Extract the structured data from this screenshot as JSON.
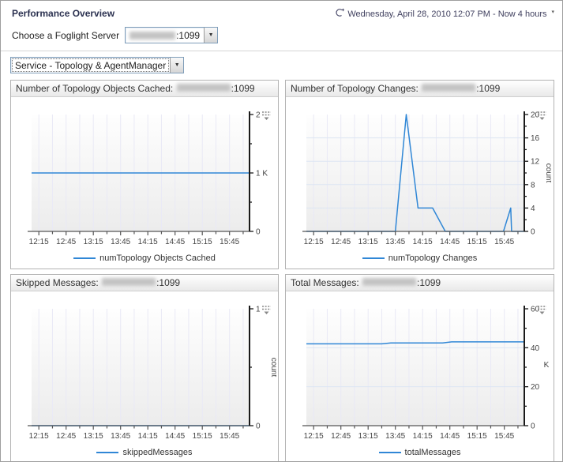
{
  "page": {
    "title": "Performance Overview",
    "time_range_text": "Wednesday, April 28, 2010 12:07 PM - Now 4 hours",
    "server_label": "Choose a Foglight Server",
    "server_value_visible": ":1099",
    "service_selector_value": "Service - Topology & AgentManager",
    "combo_arrow": "▼",
    "time_caret": "▾"
  },
  "colors": {
    "line": "#3087d6",
    "grid_v": "#e9e9f6",
    "grid_h": "#dde6f3",
    "plot_top": "#fefefe",
    "plot_bottom": "#ececec",
    "axis_x": "#555555",
    "axis_y": "#1a1a1a",
    "tick_label": "#444444",
    "unit_label": "#444444"
  },
  "x_axis": {
    "range": [
      0,
      240
    ],
    "note": "minutes after 12:07 PM",
    "major_ticks": [
      {
        "t": 8,
        "label": "12:15"
      },
      {
        "t": 38,
        "label": "12:45"
      },
      {
        "t": 68,
        "label": "13:15"
      },
      {
        "t": 98,
        "label": "13:45"
      },
      {
        "t": 128,
        "label": "14:15"
      },
      {
        "t": 158,
        "label": "14:45"
      },
      {
        "t": 188,
        "label": "15:15"
      },
      {
        "t": 218,
        "label": "15:45"
      }
    ],
    "minor_ticks": [
      23,
      53,
      83,
      113,
      143,
      173,
      203,
      233
    ]
  },
  "chart_data": [
    {
      "type": "line",
      "title_prefix": "Number of Topology Objects Cached: ",
      "host_suffix": ":1099",
      "legend": "numTopology Objects Cached",
      "y_axis": {
        "range": [
          0,
          2000
        ],
        "major": [
          {
            "v": 0,
            "label": "0"
          },
          {
            "v": 1000,
            "label": "1 K"
          },
          {
            "v": 2000,
            "label": "2"
          }
        ],
        "minor": [
          500,
          1500
        ],
        "unit": {
          "text": "",
          "rotated": false
        }
      },
      "points": [
        [
          0,
          1000
        ],
        [
          240,
          1000
        ]
      ]
    },
    {
      "type": "line",
      "title_prefix": "Number of Topology Changes: ",
      "host_suffix": ":1099",
      "legend": "numTopology Changes",
      "y_axis": {
        "range": [
          0,
          20
        ],
        "major": [
          {
            "v": 0,
            "label": "0"
          },
          {
            "v": 4,
            "label": "4"
          },
          {
            "v": 8,
            "label": "8"
          },
          {
            "v": 12,
            "label": "12"
          },
          {
            "v": 16,
            "label": "16"
          },
          {
            "v": 20,
            "label": "20"
          }
        ],
        "minor": [
          2,
          6,
          10,
          14,
          18
        ],
        "unit": {
          "text": "count",
          "rotated": true
        }
      },
      "points": [
        [
          0,
          0
        ],
        [
          98,
          0
        ],
        [
          110,
          20
        ],
        [
          123,
          4
        ],
        [
          139,
          4
        ],
        [
          153,
          0
        ],
        [
          217,
          0
        ],
        [
          225,
          4
        ],
        [
          226,
          0
        ],
        [
          240,
          0
        ]
      ]
    },
    {
      "type": "line",
      "title_prefix": "Skipped Messages: ",
      "host_suffix": ":1099",
      "legend": "skippedMessages",
      "y_axis": {
        "range": [
          0,
          1
        ],
        "major": [
          {
            "v": 0,
            "label": "0"
          },
          {
            "v": 1,
            "label": "1"
          }
        ],
        "minor": [
          0.5
        ],
        "unit": {
          "text": "count",
          "rotated": true
        }
      },
      "points": [
        [
          0,
          0
        ],
        [
          240,
          0
        ]
      ]
    },
    {
      "type": "line",
      "title_prefix": "Total Messages: ",
      "host_suffix": ":1099",
      "legend": "totalMessages",
      "y_axis": {
        "range": [
          0,
          60
        ],
        "major": [
          {
            "v": 0,
            "label": "0"
          },
          {
            "v": 20,
            "label": "20"
          },
          {
            "v": 40,
            "label": "40"
          },
          {
            "v": 60,
            "label": "60"
          }
        ],
        "minor": [
          10,
          30,
          50
        ],
        "unit": {
          "text": "K",
          "rotated": false
        }
      },
      "points": [
        [
          0,
          42
        ],
        [
          83,
          42
        ],
        [
          93,
          42.5
        ],
        [
          150,
          42.5
        ],
        [
          160,
          43
        ],
        [
          240,
          43
        ]
      ]
    }
  ]
}
